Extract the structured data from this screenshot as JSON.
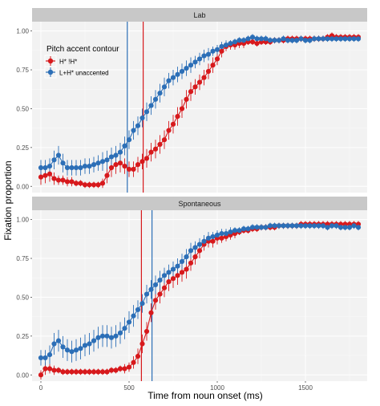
{
  "chart_data": {
    "type": "line",
    "ylabel": "Fixation proportion",
    "xlabel": "Time from noun onset (ms)",
    "x_ticks": [
      0,
      500,
      1000,
      1500
    ],
    "y_ticks": [
      "0.00",
      "0.25",
      "0.50",
      "0.75",
      "1.00"
    ],
    "xlim": [
      -50,
      1850
    ],
    "ylim": [
      -0.04,
      1.06
    ],
    "grid": true,
    "legend": {
      "position": "top-left",
      "title": "Pitch accent contour",
      "entries": [
        "H* !H*",
        "L+H* unaccented"
      ]
    },
    "colors": {
      "red": "#d7191c",
      "blue": "#2c6fb7",
      "panel_bg": "#f2f2f2",
      "strip_bg": "#c8c8c8"
    },
    "x": [
      0,
      25,
      50,
      75,
      100,
      125,
      150,
      175,
      200,
      225,
      250,
      275,
      300,
      325,
      350,
      375,
      400,
      425,
      450,
      475,
      500,
      525,
      550,
      575,
      600,
      625,
      650,
      675,
      700,
      725,
      750,
      775,
      800,
      825,
      850,
      875,
      900,
      925,
      950,
      975,
      1000,
      1025,
      1050,
      1075,
      1100,
      1125,
      1150,
      1175,
      1200,
      1225,
      1250,
      1275,
      1300,
      1325,
      1350,
      1375,
      1400,
      1425,
      1450,
      1475,
      1500,
      1525,
      1550,
      1575,
      1600,
      1625,
      1650,
      1675,
      1700,
      1725,
      1750,
      1775,
      1800
    ],
    "panels": [
      {
        "strip": "Lab",
        "vlines": [
          {
            "series": "H* !H*",
            "x": 580
          },
          {
            "series": "L+H* unaccented",
            "x": 490
          }
        ],
        "series": [
          {
            "name": "H* !H*",
            "y": [
              0.06,
              0.07,
              0.08,
              0.05,
              0.04,
              0.04,
              0.03,
              0.03,
              0.02,
              0.02,
              0.01,
              0.01,
              0.01,
              0.01,
              0.02,
              0.07,
              0.12,
              0.14,
              0.15,
              0.13,
              0.11,
              0.11,
              0.14,
              0.16,
              0.18,
              0.22,
              0.24,
              0.27,
              0.3,
              0.36,
              0.4,
              0.45,
              0.5,
              0.56,
              0.61,
              0.64,
              0.67,
              0.7,
              0.74,
              0.78,
              0.82,
              0.87,
              0.9,
              0.91,
              0.91,
              0.92,
              0.92,
              0.93,
              0.93,
              0.92,
              0.93,
              0.93,
              0.93,
              0.94,
              0.94,
              0.94,
              0.95,
              0.95,
              0.95,
              0.95,
              0.95,
              0.95,
              0.95,
              0.95,
              0.95,
              0.96,
              0.97,
              0.96,
              0.96,
              0.96,
              0.96,
              0.96,
              0.96
            ],
            "err": [
              0.05,
              0.05,
              0.05,
              0.04,
              0.03,
              0.03,
              0.03,
              0.03,
              0.02,
              0.02,
              0.02,
              0.02,
              0.02,
              0.02,
              0.03,
              0.05,
              0.06,
              0.06,
              0.06,
              0.05,
              0.05,
              0.05,
              0.05,
              0.05,
              0.06,
              0.06,
              0.06,
              0.06,
              0.06,
              0.06,
              0.06,
              0.06,
              0.06,
              0.06,
              0.06,
              0.05,
              0.05,
              0.05,
              0.05,
              0.05,
              0.04,
              0.04,
              0.03,
              0.03,
              0.03,
              0.03,
              0.03,
              0.02,
              0.02,
              0.02,
              0.02,
              0.02,
              0.02,
              0.02,
              0.02,
              0.02,
              0.02,
              0.02,
              0.02,
              0.02,
              0.02,
              0.02,
              0.02,
              0.02,
              0.02,
              0.02,
              0.02,
              0.02,
              0.02,
              0.02,
              0.02,
              0.02,
              0.02
            ]
          },
          {
            "name": "L+H* unaccented",
            "y": [
              0.12,
              0.12,
              0.13,
              0.17,
              0.2,
              0.15,
              0.12,
              0.12,
              0.12,
              0.12,
              0.13,
              0.13,
              0.14,
              0.15,
              0.16,
              0.17,
              0.19,
              0.2,
              0.22,
              0.26,
              0.3,
              0.36,
              0.39,
              0.44,
              0.48,
              0.52,
              0.56,
              0.6,
              0.64,
              0.68,
              0.7,
              0.72,
              0.74,
              0.76,
              0.78,
              0.8,
              0.82,
              0.84,
              0.85,
              0.87,
              0.88,
              0.9,
              0.91,
              0.92,
              0.93,
              0.94,
              0.94,
              0.95,
              0.96,
              0.95,
              0.95,
              0.95,
              0.94,
              0.94,
              0.94,
              0.95,
              0.94,
              0.94,
              0.94,
              0.95,
              0.94,
              0.94,
              0.95,
              0.95,
              0.95,
              0.95,
              0.95,
              0.95,
              0.95,
              0.95,
              0.95,
              0.95,
              0.95
            ],
            "err": [
              0.05,
              0.05,
              0.05,
              0.06,
              0.06,
              0.06,
              0.05,
              0.05,
              0.05,
              0.05,
              0.05,
              0.05,
              0.05,
              0.05,
              0.06,
              0.06,
              0.06,
              0.06,
              0.06,
              0.06,
              0.06,
              0.06,
              0.06,
              0.06,
              0.06,
              0.06,
              0.06,
              0.06,
              0.06,
              0.05,
              0.05,
              0.05,
              0.05,
              0.05,
              0.05,
              0.04,
              0.04,
              0.04,
              0.04,
              0.03,
              0.03,
              0.03,
              0.03,
              0.02,
              0.02,
              0.02,
              0.02,
              0.02,
              0.02,
              0.02,
              0.02,
              0.02,
              0.02,
              0.02,
              0.02,
              0.02,
              0.02,
              0.02,
              0.02,
              0.02,
              0.02,
              0.02,
              0.02,
              0.02,
              0.02,
              0.02,
              0.02,
              0.02,
              0.02,
              0.02,
              0.02,
              0.02,
              0.02
            ]
          }
        ]
      },
      {
        "strip": "Spontaneous",
        "vlines": [
          {
            "series": "H* !H*",
            "x": 570
          },
          {
            "series": "L+H* unaccented",
            "x": 630
          }
        ],
        "series": [
          {
            "name": "H* !H*",
            "y": [
              0.0,
              0.04,
              0.04,
              0.03,
              0.03,
              0.02,
              0.02,
              0.02,
              0.02,
              0.02,
              0.02,
              0.02,
              0.02,
              0.02,
              0.02,
              0.02,
              0.03,
              0.03,
              0.04,
              0.04,
              0.05,
              0.08,
              0.12,
              0.2,
              0.28,
              0.4,
              0.48,
              0.52,
              0.56,
              0.6,
              0.62,
              0.64,
              0.66,
              0.68,
              0.72,
              0.76,
              0.8,
              0.84,
              0.86,
              0.86,
              0.88,
              0.88,
              0.89,
              0.9,
              0.91,
              0.92,
              0.93,
              0.93,
              0.94,
              0.94,
              0.95,
              0.95,
              0.95,
              0.95,
              0.96,
              0.96,
              0.96,
              0.96,
              0.96,
              0.97,
              0.97,
              0.97,
              0.97,
              0.97,
              0.97,
              0.97,
              0.97,
              0.97,
              0.97,
              0.97,
              0.97,
              0.97,
              0.97
            ],
            "err": [
              0.03,
              0.04,
              0.03,
              0.03,
              0.02,
              0.02,
              0.02,
              0.02,
              0.02,
              0.02,
              0.02,
              0.02,
              0.02,
              0.02,
              0.02,
              0.02,
              0.02,
              0.02,
              0.02,
              0.03,
              0.03,
              0.04,
              0.05,
              0.06,
              0.06,
              0.06,
              0.06,
              0.06,
              0.06,
              0.06,
              0.06,
              0.06,
              0.06,
              0.06,
              0.05,
              0.05,
              0.05,
              0.04,
              0.04,
              0.04,
              0.04,
              0.03,
              0.03,
              0.03,
              0.03,
              0.02,
              0.02,
              0.02,
              0.02,
              0.02,
              0.02,
              0.02,
              0.02,
              0.02,
              0.02,
              0.02,
              0.02,
              0.02,
              0.02,
              0.02,
              0.02,
              0.02,
              0.02,
              0.02,
              0.02,
              0.02,
              0.02,
              0.02,
              0.02,
              0.02,
              0.02,
              0.02,
              0.02
            ]
          },
          {
            "name": "L+H* unaccented",
            "y": [
              0.11,
              0.11,
              0.13,
              0.2,
              0.22,
              0.18,
              0.16,
              0.15,
              0.16,
              0.17,
              0.19,
              0.2,
              0.22,
              0.24,
              0.25,
              0.25,
              0.24,
              0.25,
              0.27,
              0.3,
              0.34,
              0.38,
              0.42,
              0.46,
              0.52,
              0.55,
              0.58,
              0.61,
              0.64,
              0.66,
              0.68,
              0.7,
              0.73,
              0.76,
              0.8,
              0.82,
              0.84,
              0.86,
              0.88,
              0.89,
              0.9,
              0.91,
              0.91,
              0.92,
              0.93,
              0.93,
              0.94,
              0.94,
              0.95,
              0.95,
              0.95,
              0.95,
              0.96,
              0.96,
              0.96,
              0.96,
              0.96,
              0.96,
              0.96,
              0.96,
              0.96,
              0.96,
              0.96,
              0.96,
              0.96,
              0.95,
              0.96,
              0.96,
              0.95,
              0.95,
              0.95,
              0.96,
              0.95
            ],
            "err": [
              0.05,
              0.05,
              0.06,
              0.07,
              0.07,
              0.07,
              0.07,
              0.07,
              0.07,
              0.07,
              0.07,
              0.07,
              0.07,
              0.07,
              0.07,
              0.07,
              0.07,
              0.07,
              0.07,
              0.07,
              0.07,
              0.07,
              0.06,
              0.06,
              0.06,
              0.06,
              0.06,
              0.06,
              0.05,
              0.05,
              0.05,
              0.05,
              0.05,
              0.05,
              0.05,
              0.04,
              0.04,
              0.04,
              0.04,
              0.03,
              0.03,
              0.03,
              0.03,
              0.03,
              0.02,
              0.02,
              0.02,
              0.02,
              0.02,
              0.02,
              0.02,
              0.02,
              0.02,
              0.02,
              0.02,
              0.02,
              0.02,
              0.02,
              0.02,
              0.02,
              0.02,
              0.02,
              0.02,
              0.02,
              0.02,
              0.02,
              0.02,
              0.02,
              0.02,
              0.02,
              0.02,
              0.02,
              0.02
            ]
          }
        ]
      }
    ]
  }
}
